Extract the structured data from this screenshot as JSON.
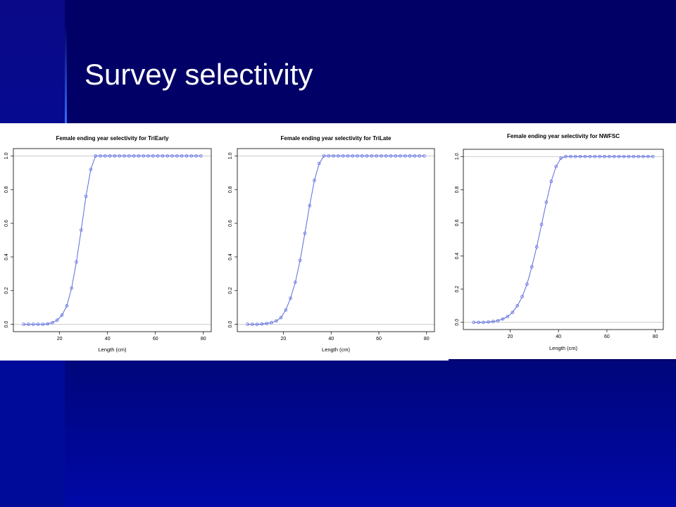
{
  "slide": {
    "title": "Survey selectivity"
  },
  "colors": {
    "background": "#000066",
    "band": "#0008a8",
    "series": "#5a6bdf",
    "reference_line": "#bbbbbb"
  },
  "chart_data": [
    {
      "type": "line",
      "title": "Female ending year selectivity for TriEarly",
      "xlabel": "Length (cm)",
      "ylabel": "",
      "xlim": [
        4,
        80
      ],
      "ylim": [
        0,
        1
      ],
      "xticks": [
        20,
        40,
        60,
        80
      ],
      "yticks": [
        0.0,
        0.2,
        0.4,
        0.6,
        0.8,
        1.0
      ],
      "reference_lines": [
        0,
        1
      ],
      "markers": "open-circle",
      "series": [
        {
          "x": [
            5,
            7,
            9,
            11,
            13,
            15,
            17,
            19,
            21,
            23,
            25,
            27,
            29,
            31,
            33,
            35,
            37,
            39,
            41,
            43,
            45,
            47,
            49,
            51,
            53,
            55,
            57,
            59,
            61,
            63,
            65,
            67,
            69,
            71,
            73,
            75,
            77,
            79
          ],
          "values": [
            0,
            0,
            0,
            0,
            0,
            0.003,
            0.01,
            0.025,
            0.055,
            0.11,
            0.215,
            0.37,
            0.56,
            0.76,
            0.92,
            1,
            1,
            1,
            1,
            1,
            1,
            1,
            1,
            1,
            1,
            1,
            1,
            1,
            1,
            1,
            1,
            1,
            1,
            1,
            1,
            1,
            1,
            1
          ]
        }
      ]
    },
    {
      "type": "line",
      "title": "Female ending year selectivity for TriLate",
      "xlabel": "Length (cm)",
      "ylabel": "",
      "xlim": [
        4,
        80
      ],
      "ylim": [
        0,
        1
      ],
      "xticks": [
        20,
        40,
        60,
        80
      ],
      "yticks": [
        0.0,
        0.2,
        0.4,
        0.6,
        0.8,
        1.0
      ],
      "reference_lines": [
        0,
        1
      ],
      "markers": "open-circle",
      "series": [
        {
          "x": [
            5,
            7,
            9,
            11,
            13,
            15,
            17,
            19,
            21,
            23,
            25,
            27,
            29,
            31,
            33,
            35,
            37,
            39,
            41,
            43,
            45,
            47,
            49,
            51,
            53,
            55,
            57,
            59,
            61,
            63,
            65,
            67,
            69,
            71,
            73,
            75,
            77,
            79
          ],
          "values": [
            0,
            0,
            0,
            0.002,
            0.005,
            0.01,
            0.02,
            0.04,
            0.085,
            0.155,
            0.25,
            0.38,
            0.54,
            0.705,
            0.855,
            0.955,
            1,
            1,
            1,
            1,
            1,
            1,
            1,
            1,
            1,
            1,
            1,
            1,
            1,
            1,
            1,
            1,
            1,
            1,
            1,
            1,
            1,
            1
          ]
        }
      ]
    },
    {
      "type": "line",
      "title": "Female ending year selectivity for NWFSC",
      "xlabel": "Length (cm)",
      "ylabel": "",
      "xlim": [
        4,
        80
      ],
      "ylim": [
        0,
        1
      ],
      "xticks": [
        20,
        40,
        60,
        80
      ],
      "yticks": [
        0.0,
        0.2,
        0.4,
        0.6,
        0.8,
        1.0
      ],
      "reference_lines": [
        0,
        1
      ],
      "markers": "open-circle",
      "series": [
        {
          "x": [
            5,
            7,
            9,
            11,
            13,
            15,
            17,
            19,
            21,
            23,
            25,
            27,
            29,
            31,
            33,
            35,
            37,
            39,
            41,
            43,
            45,
            47,
            49,
            51,
            53,
            55,
            57,
            59,
            61,
            63,
            65,
            67,
            69,
            71,
            73,
            75,
            77,
            79
          ],
          "values": [
            0,
            0,
            0,
            0.002,
            0.005,
            0.01,
            0.02,
            0.035,
            0.06,
            0.1,
            0.155,
            0.23,
            0.335,
            0.455,
            0.59,
            0.725,
            0.85,
            0.94,
            0.99,
            1,
            1,
            1,
            1,
            1,
            1,
            1,
            1,
            1,
            1,
            1,
            1,
            1,
            1,
            1,
            1,
            1,
            1,
            1
          ]
        }
      ]
    }
  ]
}
